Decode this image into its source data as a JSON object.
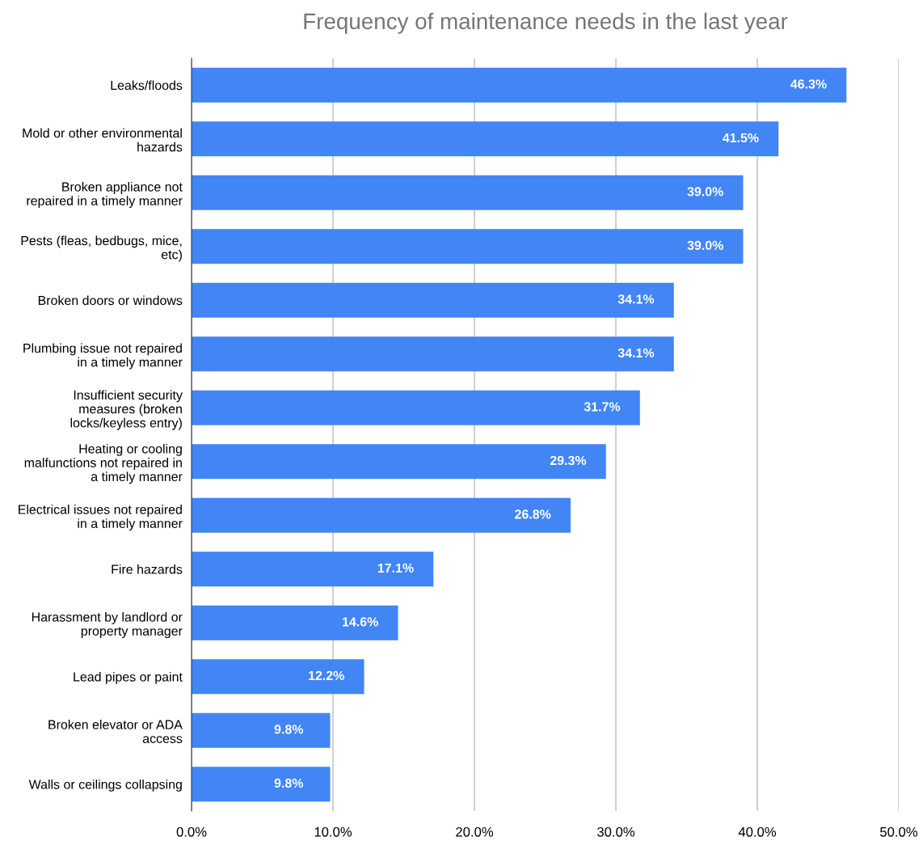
{
  "chart_data": {
    "type": "bar",
    "orientation": "horizontal",
    "title": "Frequency of maintenance needs in the last year",
    "categories": [
      "Leaks/floods",
      "Mold or other environmental\nhazards",
      "Broken appliance not\nrepaired in a timely manner",
      "Pests (fleas, bedbugs, mice,\netc)",
      "Broken doors or windows",
      "Plumbing issue not repaired\nin a timely manner",
      "Insufficient security\nmeasures (broken\nlocks/keyless entry)",
      "Heating or cooling\nmalfunctions not repaired in\na timely manner",
      "Electrical issues not repaired\nin a timely manner",
      "Fire hazards",
      "Harassment by landlord or\nproperty manager",
      "Lead pipes or paint",
      "Broken elevator or ADA\naccess",
      "Walls or ceilings collapsing"
    ],
    "values": [
      46.3,
      41.5,
      39.0,
      39.0,
      34.1,
      34.1,
      31.7,
      29.3,
      26.8,
      17.1,
      14.6,
      12.2,
      9.8,
      9.8
    ],
    "value_labels": [
      "46.3%",
      "41.5%",
      "39.0%",
      "39.0%",
      "34.1%",
      "34.1%",
      "31.7%",
      "29.3%",
      "26.8%",
      "17.1%",
      "14.6%",
      "12.2%",
      "9.8%",
      "9.8%"
    ],
    "color": "#4285f4",
    "xlim": [
      0,
      50
    ],
    "xticks": [
      {
        "value": 0,
        "label": "0.0%"
      },
      {
        "value": 10,
        "label": "10.0%"
      },
      {
        "value": 20,
        "label": "20.0%"
      },
      {
        "value": 30,
        "label": "30.0%"
      },
      {
        "value": 40,
        "label": "40.0%"
      },
      {
        "value": 50,
        "label": "50.0%"
      }
    ],
    "grid": "x"
  }
}
